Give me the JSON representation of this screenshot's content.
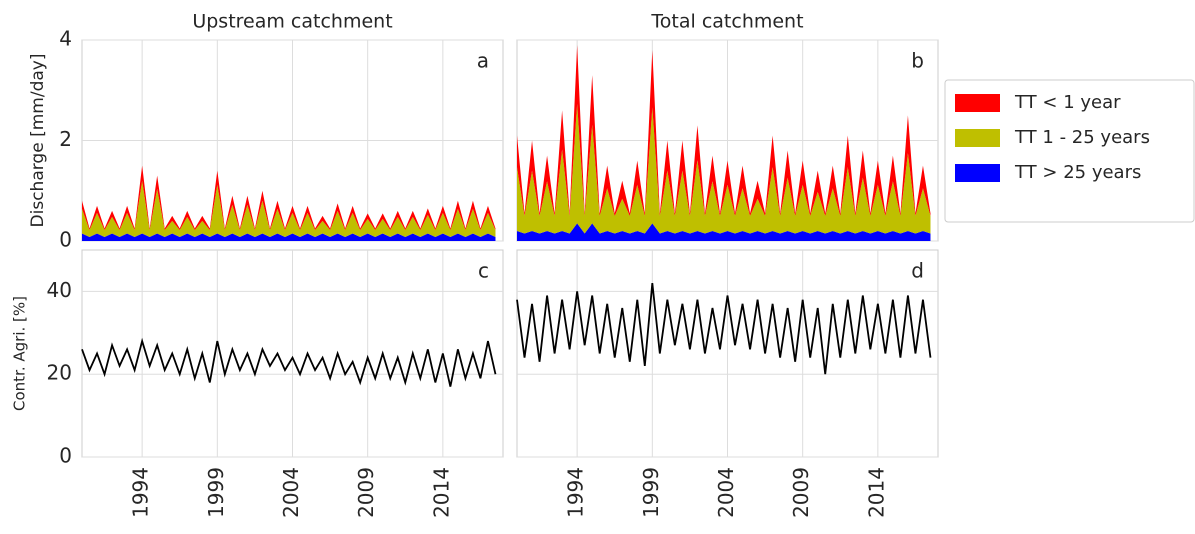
{
  "chart_data": [
    {
      "type": "area",
      "stacked": true,
      "title": "Upstream catchment",
      "y_label": "Discharge [mm/day]",
      "annotation": "a",
      "grid": true,
      "x": [
        1990,
        1990.5,
        1991,
        1991.5,
        1992,
        1992.5,
        1993,
        1993.5,
        1994,
        1994.5,
        1995,
        1995.5,
        1996,
        1996.5,
        1997,
        1997.5,
        1998,
        1998.5,
        1999,
        1999.5,
        2000,
        2000.5,
        2001,
        2001.5,
        2002,
        2002.5,
        2003,
        2003.5,
        2004,
        2004.5,
        2005,
        2005.5,
        2006,
        2006.5,
        2007,
        2007.5,
        2008,
        2008.5,
        2009,
        2009.5,
        2010,
        2010.5,
        2011,
        2011.5,
        2012,
        2012.5,
        2013,
        2013.5,
        2014,
        2014.5,
        2015,
        2015.5,
        2016,
        2016.5,
        2017,
        2017.5
      ],
      "xlim": [
        1990,
        2018
      ],
      "xticks": [
        1994,
        1999,
        2004,
        2009,
        2014
      ],
      "ylim": [
        0,
        4
      ],
      "yticks": [
        0,
        2,
        4
      ],
      "series": [
        {
          "color": "#0000ff",
          "values": [
            0.15,
            0.08,
            0.15,
            0.08,
            0.15,
            0.08,
            0.15,
            0.08,
            0.15,
            0.08,
            0.15,
            0.08,
            0.15,
            0.08,
            0.15,
            0.08,
            0.15,
            0.08,
            0.15,
            0.08,
            0.15,
            0.08,
            0.15,
            0.08,
            0.15,
            0.08,
            0.15,
            0.08,
            0.15,
            0.08,
            0.15,
            0.08,
            0.15,
            0.08,
            0.15,
            0.08,
            0.15,
            0.08,
            0.15,
            0.08,
            0.15,
            0.08,
            0.15,
            0.08,
            0.15,
            0.08,
            0.15,
            0.08,
            0.15,
            0.08,
            0.15,
            0.08,
            0.15,
            0.08,
            0.15,
            0.08
          ]
        },
        {
          "color": "#bfbf00",
          "values": [
            0.49,
            0.14,
            0.41,
            0.14,
            0.33,
            0.14,
            0.41,
            0.14,
            1.05,
            0.14,
            0.89,
            0.14,
            0.25,
            0.14,
            0.33,
            0.14,
            0.25,
            0.14,
            0.97,
            0.14,
            0.57,
            0.14,
            0.57,
            0.14,
            0.65,
            0.14,
            0.49,
            0.14,
            0.41,
            0.14,
            0.41,
            0.14,
            0.25,
            0.14,
            0.45,
            0.14,
            0.41,
            0.14,
            0.29,
            0.14,
            0.29,
            0.14,
            0.33,
            0.14,
            0.33,
            0.14,
            0.37,
            0.14,
            0.41,
            0.14,
            0.49,
            0.14,
            0.49,
            0.14,
            0.41,
            0.14
          ]
        },
        {
          "color": "#ff0000",
          "values": [
            0.16,
            0.03,
            0.14,
            0.03,
            0.12,
            0.03,
            0.14,
            0.03,
            0.3,
            0.03,
            0.26,
            0.03,
            0.1,
            0.03,
            0.12,
            0.03,
            0.1,
            0.03,
            0.28,
            0.03,
            0.18,
            0.03,
            0.18,
            0.03,
            0.2,
            0.03,
            0.16,
            0.03,
            0.14,
            0.03,
            0.14,
            0.03,
            0.1,
            0.03,
            0.15,
            0.03,
            0.14,
            0.03,
            0.11,
            0.03,
            0.11,
            0.03,
            0.12,
            0.03,
            0.12,
            0.03,
            0.13,
            0.03,
            0.14,
            0.03,
            0.16,
            0.03,
            0.16,
            0.03,
            0.14,
            0.03
          ]
        }
      ]
    },
    {
      "type": "area",
      "stacked": true,
      "title": "Total catchment",
      "annotation": "b",
      "grid": true,
      "legend": "right",
      "x": [
        1990,
        1990.5,
        1991,
        1991.5,
        1992,
        1992.5,
        1993,
        1993.5,
        1994,
        1994.5,
        1995,
        1995.5,
        1996,
        1996.5,
        1997,
        1997.5,
        1998,
        1998.5,
        1999,
        1999.5,
        2000,
        2000.5,
        2001,
        2001.5,
        2002,
        2002.5,
        2003,
        2003.5,
        2004,
        2004.5,
        2005,
        2005.5,
        2006,
        2006.5,
        2007,
        2007.5,
        2008,
        2008.5,
        2009,
        2009.5,
        2010,
        2010.5,
        2011,
        2011.5,
        2012,
        2012.5,
        2013,
        2013.5,
        2014,
        2014.5,
        2015,
        2015.5,
        2016,
        2016.5,
        2017,
        2017.5
      ],
      "xlim": [
        1990,
        2018
      ],
      "xticks": [
        1994,
        1999,
        2004,
        2009,
        2014
      ],
      "ylim": [
        0,
        4
      ],
      "yticks": [
        0,
        2,
        4
      ],
      "series": [
        {
          "name": "TT > 25 years",
          "color": "#0000ff",
          "values": [
            0.2,
            0.15,
            0.2,
            0.15,
            0.2,
            0.15,
            0.2,
            0.15,
            0.35,
            0.15,
            0.35,
            0.15,
            0.2,
            0.15,
            0.2,
            0.15,
            0.2,
            0.15,
            0.35,
            0.15,
            0.2,
            0.15,
            0.2,
            0.15,
            0.2,
            0.15,
            0.2,
            0.15,
            0.2,
            0.15,
            0.2,
            0.15,
            0.2,
            0.15,
            0.2,
            0.15,
            0.2,
            0.15,
            0.2,
            0.15,
            0.2,
            0.15,
            0.2,
            0.15,
            0.2,
            0.15,
            0.2,
            0.15,
            0.2,
            0.15,
            0.2,
            0.15,
            0.2,
            0.15,
            0.2,
            0.15
          ]
        },
        {
          "name": "TT 1 - 25 years",
          "color": "#bfbf00",
          "values": [
            1.27,
            0.35,
            1.2,
            0.35,
            0.99,
            0.35,
            1.62,
            0.35,
            2.38,
            0.35,
            1.96,
            0.35,
            0.85,
            0.35,
            0.64,
            0.35,
            0.92,
            0.35,
            2.31,
            0.35,
            1.2,
            0.35,
            1.2,
            0.35,
            1.41,
            0.35,
            0.99,
            0.35,
            0.92,
            0.35,
            0.85,
            0.35,
            0.64,
            0.35,
            1.27,
            0.35,
            1.06,
            0.35,
            0.92,
            0.35,
            0.78,
            0.35,
            0.85,
            0.35,
            1.27,
            0.35,
            1.06,
            0.35,
            0.92,
            0.35,
            0.99,
            0.35,
            1.55,
            0.35,
            0.85,
            0.35
          ]
        },
        {
          "name": "TT < 1 year",
          "color": "#ff0000",
          "values": [
            0.63,
            0.05,
            0.6,
            0.05,
            0.51,
            0.05,
            0.78,
            0.05,
            1.17,
            0.05,
            0.99,
            0.05,
            0.45,
            0.05,
            0.36,
            0.05,
            0.48,
            0.05,
            1.14,
            0.05,
            0.6,
            0.05,
            0.6,
            0.05,
            0.69,
            0.05,
            0.51,
            0.05,
            0.48,
            0.05,
            0.45,
            0.05,
            0.36,
            0.05,
            0.63,
            0.05,
            0.54,
            0.05,
            0.48,
            0.05,
            0.42,
            0.05,
            0.45,
            0.05,
            0.63,
            0.05,
            0.54,
            0.05,
            0.48,
            0.05,
            0.51,
            0.05,
            0.75,
            0.05,
            0.45,
            0.05
          ]
        }
      ]
    },
    {
      "type": "line",
      "y_label": "Contr. Agri. [%]",
      "annotation": "c",
      "grid": true,
      "x": [
        1990,
        1990.5,
        1991,
        1991.5,
        1992,
        1992.5,
        1993,
        1993.5,
        1994,
        1994.5,
        1995,
        1995.5,
        1996,
        1996.5,
        1997,
        1997.5,
        1998,
        1998.5,
        1999,
        1999.5,
        2000,
        2000.5,
        2001,
        2001.5,
        2002,
        2002.5,
        2003,
        2003.5,
        2004,
        2004.5,
        2005,
        2005.5,
        2006,
        2006.5,
        2007,
        2007.5,
        2008,
        2008.5,
        2009,
        2009.5,
        2010,
        2010.5,
        2011,
        2011.5,
        2012,
        2012.5,
        2013,
        2013.5,
        2014,
        2014.5,
        2015,
        2015.5,
        2016,
        2016.5,
        2017,
        2017.5
      ],
      "xlim": [
        1990,
        2018
      ],
      "xticks": [
        1994,
        1999,
        2004,
        2009,
        2014
      ],
      "ylim": [
        0,
        50
      ],
      "yticks": [
        0,
        20,
        40
      ],
      "series": [
        {
          "color": "#000000",
          "values": [
            26,
            21,
            25,
            20,
            27,
            22,
            26,
            21,
            28,
            22,
            27,
            21,
            25,
            20,
            26,
            19,
            25,
            18,
            28,
            20,
            26,
            21,
            25,
            20,
            26,
            22,
            25,
            21,
            24,
            20,
            25,
            21,
            24,
            19,
            25,
            20,
            23,
            18,
            24,
            19,
            25,
            19,
            24,
            18,
            25,
            19,
            26,
            18,
            25,
            17,
            26,
            19,
            25,
            19,
            28,
            20
          ]
        }
      ]
    },
    {
      "type": "line",
      "annotation": "d",
      "grid": true,
      "x": [
        1990,
        1990.5,
        1991,
        1991.5,
        1992,
        1992.5,
        1993,
        1993.5,
        1994,
        1994.5,
        1995,
        1995.5,
        1996,
        1996.5,
        1997,
        1997.5,
        1998,
        1998.5,
        1999,
        1999.5,
        2000,
        2000.5,
        2001,
        2001.5,
        2002,
        2002.5,
        2003,
        2003.5,
        2004,
        2004.5,
        2005,
        2005.5,
        2006,
        2006.5,
        2007,
        2007.5,
        2008,
        2008.5,
        2009,
        2009.5,
        2010,
        2010.5,
        2011,
        2011.5,
        2012,
        2012.5,
        2013,
        2013.5,
        2014,
        2014.5,
        2015,
        2015.5,
        2016,
        2016.5,
        2017,
        2017.5
      ],
      "xlim": [
        1990,
        2018
      ],
      "xticks": [
        1994,
        1999,
        2004,
        2009,
        2014
      ],
      "ylim": [
        0,
        50
      ],
      "yticks": [
        0,
        20,
        40
      ],
      "series": [
        {
          "color": "#000000",
          "values": [
            38,
            24,
            37,
            23,
            39,
            25,
            38,
            26,
            40,
            27,
            39,
            25,
            37,
            24,
            36,
            23,
            38,
            22,
            42,
            25,
            38,
            27,
            37,
            26,
            38,
            25,
            36,
            26,
            39,
            27,
            37,
            26,
            38,
            25,
            37,
            24,
            36,
            23,
            38,
            24,
            36,
            20,
            37,
            24,
            38,
            25,
            39,
            26,
            37,
            25,
            38,
            24,
            39,
            25,
            38,
            24
          ]
        }
      ]
    }
  ]
}
